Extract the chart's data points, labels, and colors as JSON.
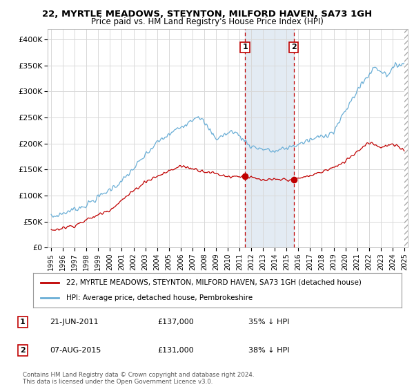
{
  "title_line1": "22, MYRTLE MEADOWS, STEYNTON, MILFORD HAVEN, SA73 1GH",
  "title_line2": "Price paid vs. HM Land Registry's House Price Index (HPI)",
  "ylabel_ticks": [
    "£0",
    "£50K",
    "£100K",
    "£150K",
    "£200K",
    "£250K",
    "£300K",
    "£350K",
    "£400K"
  ],
  "ytick_values": [
    0,
    50000,
    100000,
    150000,
    200000,
    250000,
    300000,
    350000,
    400000
  ],
  "ylim": [
    0,
    420000
  ],
  "xlim_start": 1994.7,
  "xlim_end": 2025.3,
  "hpi_color": "#6aaed6",
  "sold_color": "#c00000",
  "background_color": "#ffffff",
  "grid_color": "#d8d8d8",
  "sale1_date": "21-JUN-2011",
  "sale1_price": 137000,
  "sale1_pct": "35%",
  "sale1_year": 2011.47,
  "sale2_date": "07-AUG-2015",
  "sale2_price": 131000,
  "sale2_pct": "38%",
  "sale2_year": 2015.6,
  "legend_label_sold": "22, MYRTLE MEADOWS, STEYNTON, MILFORD HAVEN, SA73 1GH (detached house)",
  "legend_label_hpi": "HPI: Average price, detached house, Pembrokeshire",
  "footnote": "Contains HM Land Registry data © Crown copyright and database right 2024.\nThis data is licensed under the Open Government Licence v3.0.",
  "shade_color": "#dce6f1",
  "dashed_color": "#c00000",
  "marker_color": "#c00000"
}
